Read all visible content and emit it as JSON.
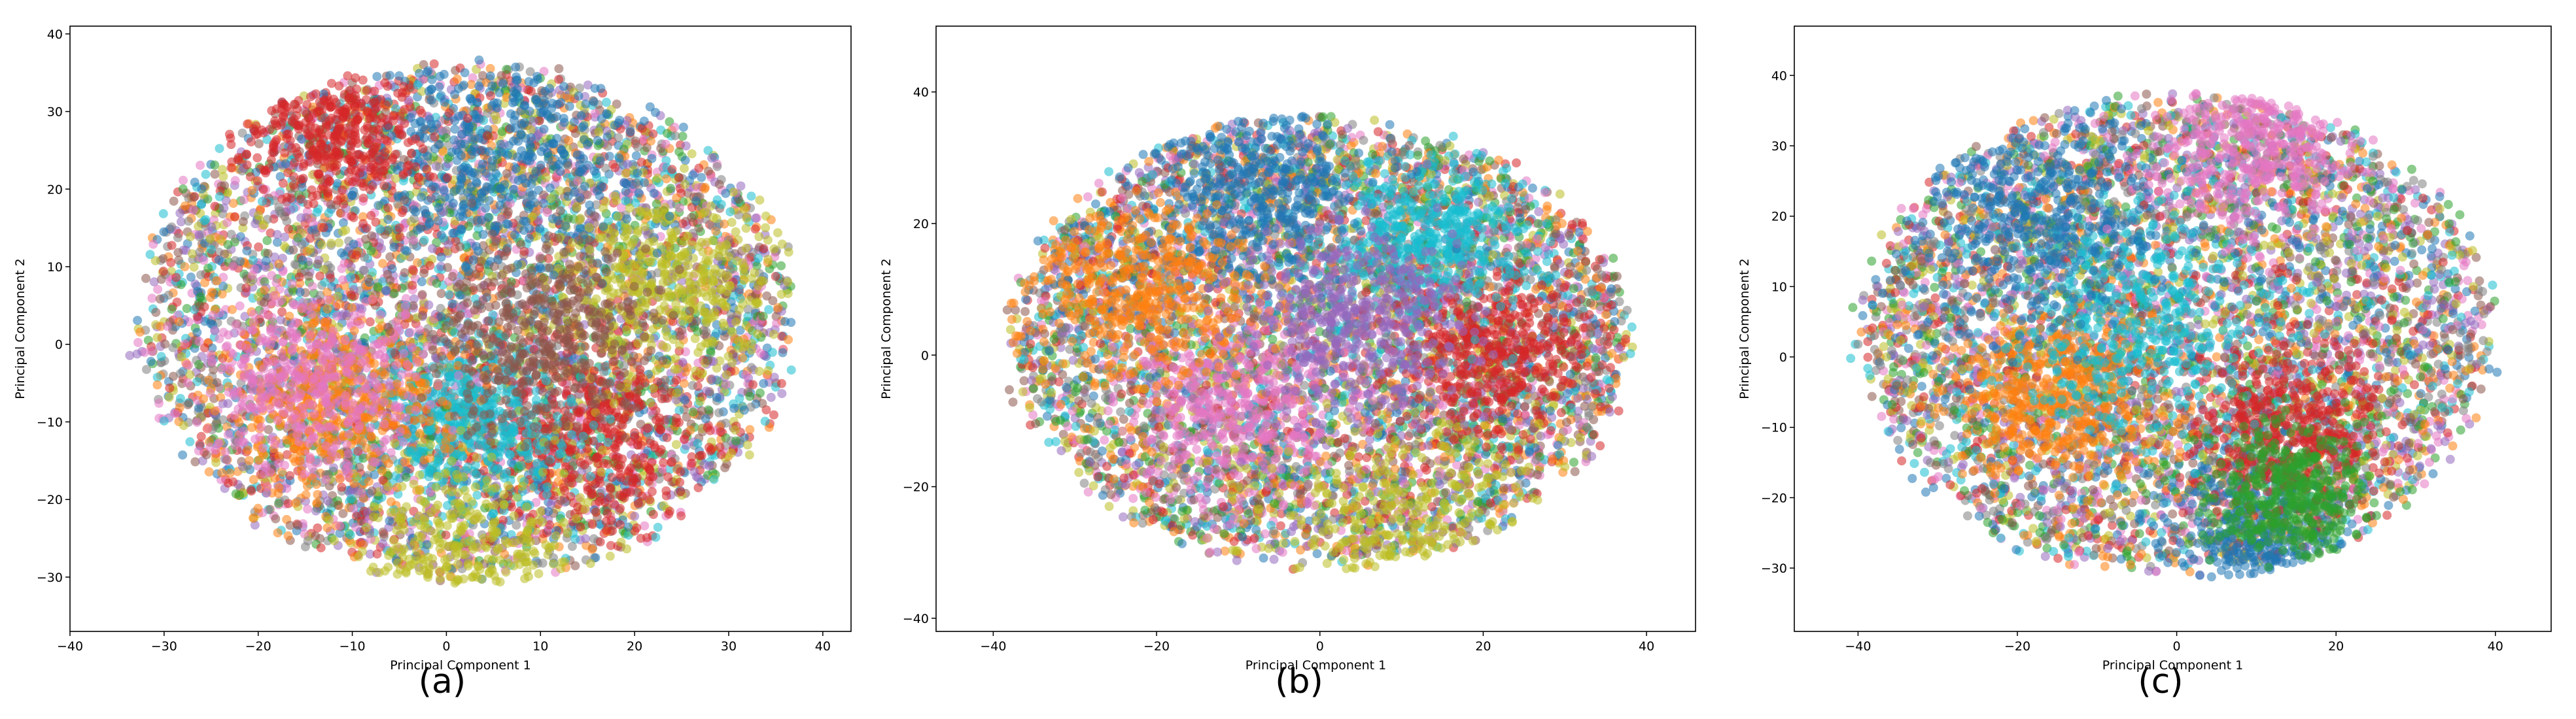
{
  "figure": {
    "panels": [
      {
        "label": "(a)"
      },
      {
        "label": "(b)"
      },
      {
        "label": "(c)"
      }
    ]
  },
  "chart_data": [
    {
      "type": "scatter",
      "panel": "(a)",
      "xlabel": "Principal Component 1",
      "ylabel": "Principal Component 2",
      "xlim": [
        -40,
        43
      ],
      "ylim": [
        -37,
        41
      ],
      "xticks": [
        -40,
        -30,
        -20,
        -10,
        0,
        10,
        20,
        30,
        40
      ],
      "yticks": [
        -30,
        -20,
        -10,
        0,
        10,
        20,
        30,
        40
      ],
      "grid": false,
      "legend": "none",
      "point_alpha": 0.55,
      "colors": [
        "#1f77b4",
        "#ff7f0e",
        "#2ca02c",
        "#d62728",
        "#9467bd",
        "#8c564b",
        "#e377c2",
        "#7f7f7f",
        "#bcbd22",
        "#17becf"
      ],
      "cloud": {
        "center": [
          2,
          3
        ],
        "radius": [
          35,
          33
        ]
      },
      "clusters": [
        {
          "color": "#d62728",
          "center": [
            16,
            -12
          ],
          "spread": 6
        },
        {
          "color": "#17becf",
          "center": [
            3,
            -10
          ],
          "spread": 5
        },
        {
          "color": "#ff7f0e",
          "center": [
            -12,
            -7
          ],
          "spread": 6
        },
        {
          "color": "#e377c2",
          "center": [
            -14,
            -5
          ],
          "spread": 6
        },
        {
          "color": "#bcbd22",
          "center": [
            23,
            7
          ],
          "spread": 6
        },
        {
          "color": "#1f77b4",
          "center": [
            5,
            25
          ],
          "spread": 8
        },
        {
          "color": "#bcbd22",
          "center": [
            3,
            -28
          ],
          "spread": 7
        },
        {
          "color": "#d62728",
          "center": [
            -12,
            27
          ],
          "spread": 5
        },
        {
          "color": "#8c564b",
          "center": [
            10,
            1
          ],
          "spread": 6
        }
      ]
    },
    {
      "type": "scatter",
      "panel": "(b)",
      "xlabel": "Principal Component 1",
      "ylabel": "Principal Component 2",
      "xlim": [
        -47,
        46
      ],
      "ylim": [
        -42,
        50
      ],
      "xticks": [
        -40,
        -20,
        0,
        20,
        40
      ],
      "yticks": [
        -40,
        -20,
        0,
        20,
        40
      ],
      "grid": false,
      "legend": "none",
      "point_alpha": 0.55,
      "colors": [
        "#1f77b4",
        "#ff7f0e",
        "#2ca02c",
        "#d62728",
        "#9467bd",
        "#8c564b",
        "#e377c2",
        "#7f7f7f",
        "#bcbd22",
        "#17becf"
      ],
      "cloud": {
        "center": [
          0,
          2
        ],
        "radius": [
          38,
          34
        ]
      },
      "clusters": [
        {
          "color": "#d62728",
          "center": [
            21,
            0
          ],
          "spread": 6
        },
        {
          "color": "#e377c2",
          "center": [
            -10,
            -8
          ],
          "spread": 7
        },
        {
          "color": "#17becf",
          "center": [
            13,
            18
          ],
          "spread": 6
        },
        {
          "color": "#bcbd22",
          "center": [
            12,
            -28
          ],
          "spread": 8
        },
        {
          "color": "#1f77b4",
          "center": [
            -8,
            25
          ],
          "spread": 7
        },
        {
          "color": "#ff7f0e",
          "center": [
            -22,
            10
          ],
          "spread": 7
        },
        {
          "color": "#9467bd",
          "center": [
            5,
            5
          ],
          "spread": 7
        }
      ]
    },
    {
      "type": "scatter",
      "panel": "(c)",
      "xlabel": "Principal Component 1",
      "ylabel": "Principal Component 2",
      "xlim": [
        -48,
        47
      ],
      "ylim": [
        -39,
        47
      ],
      "xticks": [
        -40,
        -20,
        0,
        20,
        40
      ],
      "yticks": [
        -30,
        -20,
        -10,
        0,
        10,
        20,
        30,
        40
      ],
      "grid": false,
      "legend": "none",
      "point_alpha": 0.55,
      "colors": [
        "#1f77b4",
        "#ff7f0e",
        "#2ca02c",
        "#d62728",
        "#9467bd",
        "#8c564b",
        "#e377c2",
        "#7f7f7f",
        "#bcbd22",
        "#17becf"
      ],
      "cloud": {
        "center": [
          0,
          3
        ],
        "radius": [
          40,
          34
        ]
      },
      "clusters": [
        {
          "color": "#1f77b4",
          "center": [
            10,
            -27
          ],
          "spread": 6
        },
        {
          "color": "#d62728",
          "center": [
            14,
            -10
          ],
          "spread": 6
        },
        {
          "color": "#ff7f0e",
          "center": [
            -15,
            -6
          ],
          "spread": 6
        },
        {
          "color": "#17becf",
          "center": [
            -5,
            5
          ],
          "spread": 8
        },
        {
          "color": "#1f77b4",
          "center": [
            -18,
            20
          ],
          "spread": 8
        },
        {
          "color": "#2ca02c",
          "center": [
            14,
            -20
          ],
          "spread": 5
        },
        {
          "color": "#e377c2",
          "center": [
            10,
            30
          ],
          "spread": 6
        }
      ]
    }
  ]
}
